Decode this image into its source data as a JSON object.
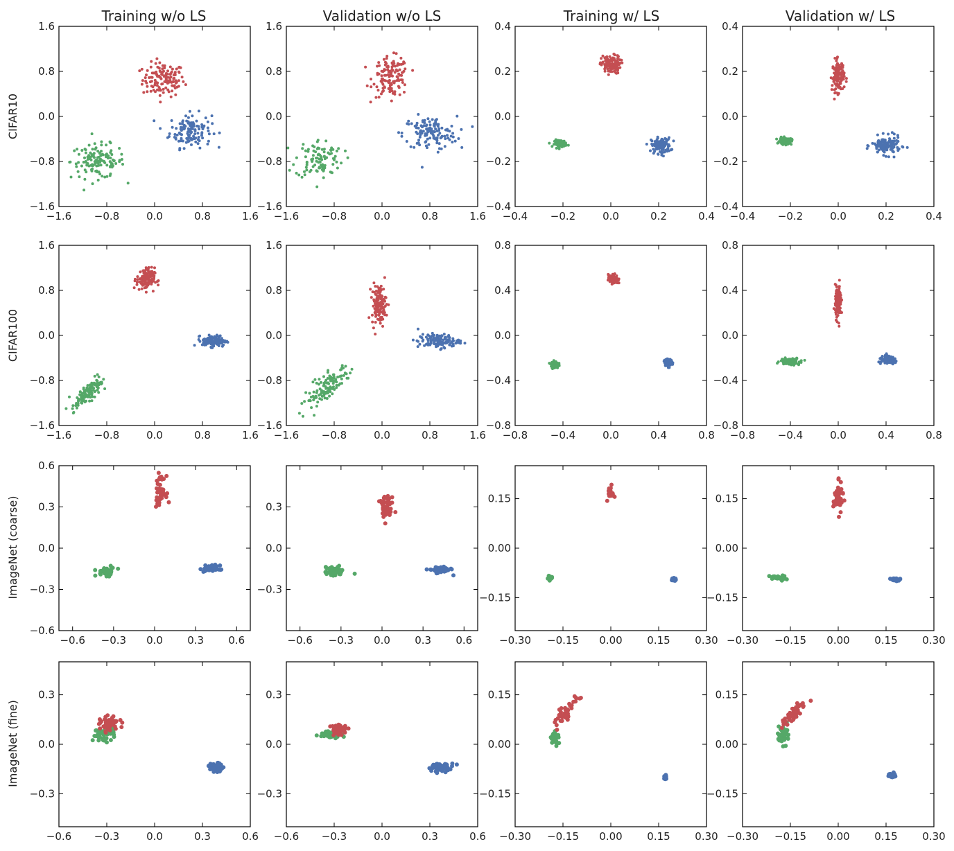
{
  "figure": {
    "column_titles": [
      "Training w/o LS",
      "Validation w/o LS",
      "Training w/ LS",
      "Validation w/ LS"
    ],
    "row_labels": [
      "CIFAR10",
      "CIFAR100",
      "ImageNet (coarse)",
      "ImageNet (fine)"
    ],
    "colors": {
      "red": "#c44e52",
      "blue": "#4c72b0",
      "green": "#55a868"
    }
  },
  "chart_data": [
    {
      "type": "scatter",
      "row": 0,
      "col": 0,
      "xlim": [
        -1.6,
        1.6
      ],
      "ylim": [
        -1.6,
        1.6
      ],
      "xticks": [
        "-1.6",
        "-0.8",
        "0.0",
        "0.8",
        "1.6"
      ],
      "yticks": [
        "-1.6",
        "-0.8",
        "0.0",
        "0.8",
        "1.6"
      ],
      "series": [
        {
          "color": "red",
          "center": [
            0.15,
            0.65
          ],
          "spread": [
            0.35,
            0.3
          ],
          "n": 130
        },
        {
          "color": "blue",
          "center": [
            0.6,
            -0.25
          ],
          "spread": [
            0.35,
            0.3
          ],
          "n": 130
        },
        {
          "color": "green",
          "center": [
            -0.95,
            -0.8
          ],
          "spread": [
            0.45,
            0.3
          ],
          "n": 130
        }
      ]
    },
    {
      "type": "scatter",
      "row": 0,
      "col": 1,
      "xlim": [
        -1.6,
        1.6
      ],
      "ylim": [
        -1.6,
        1.6
      ],
      "xticks": [
        "-1.6",
        "-0.8",
        "0.0",
        "0.8",
        "1.6"
      ],
      "yticks": [
        "-1.6",
        "-0.8",
        "0.0",
        "0.8",
        "1.6"
      ],
      "series": [
        {
          "color": "red",
          "center": [
            0.15,
            0.7
          ],
          "spread": [
            0.3,
            0.35
          ],
          "n": 130
        },
        {
          "color": "blue",
          "center": [
            0.8,
            -0.3
          ],
          "spread": [
            0.45,
            0.3
          ],
          "n": 130
        },
        {
          "color": "green",
          "center": [
            -1.05,
            -0.75
          ],
          "spread": [
            0.4,
            0.35
          ],
          "n": 100
        }
      ]
    },
    {
      "type": "scatter",
      "row": 0,
      "col": 2,
      "xlim": [
        -0.4,
        0.4
      ],
      "ylim": [
        -0.4,
        0.4
      ],
      "xticks": [
        "-0.4",
        "-0.2",
        "0.0",
        "0.2",
        "0.4"
      ],
      "yticks": [
        "-0.4",
        "-0.2",
        "0.0",
        "0.2",
        "0.4"
      ],
      "series": [
        {
          "color": "red",
          "center": [
            0.0,
            0.23
          ],
          "spread": [
            0.04,
            0.04
          ],
          "n": 120
        },
        {
          "color": "blue",
          "center": [
            0.21,
            -0.13
          ],
          "spread": [
            0.04,
            0.035
          ],
          "n": 120
        },
        {
          "color": "green",
          "center": [
            -0.21,
            -0.12
          ],
          "spread": [
            0.025,
            0.015
          ],
          "n": 100
        }
      ]
    },
    {
      "type": "scatter",
      "row": 0,
      "col": 3,
      "xlim": [
        -0.4,
        0.4
      ],
      "ylim": [
        -0.4,
        0.4
      ],
      "xticks": [
        "-0.4",
        "-0.2",
        "0.0",
        "0.2",
        "0.4"
      ],
      "yticks": [
        "-0.4",
        "-0.2",
        "0.0",
        "0.2",
        "0.4"
      ],
      "series": [
        {
          "color": "red",
          "center": [
            0.0,
            0.18
          ],
          "spread": [
            0.025,
            0.07
          ],
          "n": 130
        },
        {
          "color": "blue",
          "center": [
            0.2,
            -0.13
          ],
          "spread": [
            0.06,
            0.04
          ],
          "n": 130
        },
        {
          "color": "green",
          "center": [
            -0.22,
            -0.11
          ],
          "spread": [
            0.025,
            0.015
          ],
          "n": 100
        }
      ]
    },
    {
      "type": "scatter",
      "row": 1,
      "col": 0,
      "xlim": [
        -1.6,
        1.6
      ],
      "ylim": [
        -1.6,
        1.6
      ],
      "xticks": [
        "-1.6",
        "-0.8",
        "0.0",
        "0.8",
        "1.6"
      ],
      "yticks": [
        "-1.6",
        "-0.8",
        "0.0",
        "0.8",
        "1.6"
      ],
      "series": [
        {
          "color": "red",
          "center": [
            -0.15,
            1.0
          ],
          "spread": [
            0.15,
            0.2
          ],
          "n": 120
        },
        {
          "color": "blue",
          "center": [
            1.0,
            -0.1
          ],
          "spread": [
            0.2,
            0.1
          ],
          "n": 130
        },
        {
          "color": "green",
          "center": [
            -1.1,
            -1.0
          ],
          "spread": [
            0.2,
            0.25
          ],
          "diag": true,
          "n": 130
        }
      ]
    },
    {
      "type": "scatter",
      "row": 1,
      "col": 1,
      "xlim": [
        -1.6,
        1.6
      ],
      "ylim": [
        -1.6,
        1.6
      ],
      "xticks": [
        "-1.6",
        "-0.8",
        "0.0",
        "0.8",
        "1.6"
      ],
      "yticks": [
        "-1.6",
        "-0.8",
        "0.0",
        "0.8",
        "1.6"
      ],
      "series": [
        {
          "color": "red",
          "center": [
            -0.05,
            0.55
          ],
          "spread": [
            0.12,
            0.35
          ],
          "n": 130
        },
        {
          "color": "blue",
          "center": [
            0.95,
            -0.1
          ],
          "spread": [
            0.35,
            0.12
          ],
          "n": 120
        },
        {
          "color": "green",
          "center": [
            -0.95,
            -0.95
          ],
          "spread": [
            0.35,
            0.35
          ],
          "diag": true,
          "n": 120
        }
      ]
    },
    {
      "type": "scatter",
      "row": 1,
      "col": 2,
      "xlim": [
        -0.8,
        0.8
      ],
      "ylim": [
        -0.8,
        0.8
      ],
      "xticks": [
        "-0.8",
        "-0.4",
        "0.0",
        "0.4",
        "0.8"
      ],
      "yticks": [
        "-0.8",
        "-0.4",
        "0.0",
        "0.4",
        "0.8"
      ],
      "series": [
        {
          "color": "red",
          "center": [
            0.02,
            0.5
          ],
          "spread": [
            0.04,
            0.04
          ],
          "n": 110
        },
        {
          "color": "blue",
          "center": [
            0.48,
            -0.24
          ],
          "spread": [
            0.03,
            0.03
          ],
          "n": 120
        },
        {
          "color": "green",
          "center": [
            -0.47,
            -0.26
          ],
          "spread": [
            0.03,
            0.03
          ],
          "n": 120
        }
      ]
    },
    {
      "type": "scatter",
      "row": 1,
      "col": 3,
      "xlim": [
        -0.8,
        0.8
      ],
      "ylim": [
        -0.8,
        0.8
      ],
      "xticks": [
        "-0.8",
        "-0.4",
        "0.0",
        "0.4",
        "0.8"
      ],
      "yticks": [
        "-0.8",
        "-0.4",
        "0.0",
        "0.4",
        "0.8"
      ],
      "series": [
        {
          "color": "red",
          "center": [
            0.0,
            0.3
          ],
          "spread": [
            0.025,
            0.14
          ],
          "n": 130
        },
        {
          "color": "blue",
          "center": [
            0.42,
            -0.22
          ],
          "spread": [
            0.08,
            0.035
          ],
          "n": 110
        },
        {
          "color": "green",
          "center": [
            -0.4,
            -0.23
          ],
          "spread": [
            0.08,
            0.03
          ],
          "n": 110
        }
      ]
    },
    {
      "type": "scatter",
      "row": 2,
      "col": 0,
      "xlim": [
        -0.7,
        0.7
      ],
      "ylim": [
        -0.6,
        0.6
      ],
      "xticks": [
        "-0.6",
        "-0.3",
        "0.0",
        "0.3",
        "0.6"
      ],
      "yticks": [
        "-0.6",
        "-0.3",
        "0.0",
        "0.3",
        "0.6"
      ],
      "series": [
        {
          "color": "red",
          "center": [
            0.04,
            0.42
          ],
          "spread": [
            0.04,
            0.1
          ],
          "n": 45
        },
        {
          "color": "blue",
          "center": [
            0.42,
            -0.15
          ],
          "spread": [
            0.06,
            0.025
          ],
          "n": 45
        },
        {
          "color": "green",
          "center": [
            -0.35,
            -0.17
          ],
          "spread": [
            0.07,
            0.03
          ],
          "n": 45
        }
      ]
    },
    {
      "type": "scatter",
      "row": 2,
      "col": 1,
      "xlim": [
        -0.7,
        0.7
      ],
      "ylim": [
        -0.6,
        0.6
      ],
      "xticks": [
        "-0.6",
        "-0.3",
        "0.0",
        "0.3",
        "0.6"
      ],
      "yticks": [
        "-0.3",
        "0.0",
        "0.3"
      ],
      "series": [
        {
          "color": "red",
          "center": [
            0.03,
            0.3
          ],
          "spread": [
            0.05,
            0.1
          ],
          "n": 45
        },
        {
          "color": "blue",
          "center": [
            0.42,
            -0.16
          ],
          "spread": [
            0.08,
            0.025
          ],
          "n": 45
        },
        {
          "color": "green",
          "center": [
            -0.35,
            -0.17
          ],
          "spread": [
            0.07,
            0.035
          ],
          "n": 45
        }
      ]
    },
    {
      "type": "scatter",
      "row": 2,
      "col": 2,
      "xlim": [
        -0.3,
        0.3
      ],
      "ylim": [
        -0.25,
        0.25
      ],
      "xticks": [
        "-0.30",
        "-0.15",
        "0.00",
        "0.15",
        "0.30"
      ],
      "yticks": [
        "-0.15",
        "0.00",
        "0.15"
      ],
      "series": [
        {
          "color": "red",
          "center": [
            0.0,
            0.17
          ],
          "spread": [
            0.01,
            0.02
          ],
          "n": 25
        },
        {
          "color": "blue",
          "center": [
            0.2,
            -0.095
          ],
          "spread": [
            0.006,
            0.004
          ],
          "n": 30
        },
        {
          "color": "green",
          "center": [
            -0.19,
            -0.09
          ],
          "spread": [
            0.008,
            0.006
          ],
          "n": 30
        }
      ]
    },
    {
      "type": "scatter",
      "row": 2,
      "col": 3,
      "xlim": [
        -0.3,
        0.3
      ],
      "ylim": [
        -0.25,
        0.25
      ],
      "xticks": [
        "-0.30",
        "-0.15",
        "0.00",
        "0.15",
        "0.30"
      ],
      "yticks": [
        "-0.15",
        "0.00",
        "0.15"
      ],
      "series": [
        {
          "color": "red",
          "center": [
            0.0,
            0.15
          ],
          "spread": [
            0.015,
            0.045
          ],
          "n": 45
        },
        {
          "color": "blue",
          "center": [
            0.18,
            -0.095
          ],
          "spread": [
            0.015,
            0.004
          ],
          "n": 30
        },
        {
          "color": "green",
          "center": [
            -0.19,
            -0.09
          ],
          "spread": [
            0.025,
            0.008
          ],
          "n": 35
        }
      ]
    },
    {
      "type": "scatter",
      "row": 3,
      "col": 0,
      "xlim": [
        -0.6,
        0.6
      ],
      "ylim": [
        -0.5,
        0.5
      ],
      "xticks": [
        "-0.6",
        "-0.3",
        "0.0",
        "0.3",
        "0.6"
      ],
      "yticks": [
        "-0.3",
        "0.0",
        "0.3"
      ],
      "series": [
        {
          "color": "green",
          "center": [
            -0.32,
            0.06
          ],
          "spread": [
            0.07,
            0.04
          ],
          "n": 50
        },
        {
          "color": "red",
          "center": [
            -0.28,
            0.12
          ],
          "spread": [
            0.06,
            0.045
          ],
          "n": 50
        },
        {
          "color": "blue",
          "center": [
            0.38,
            -0.14
          ],
          "spread": [
            0.05,
            0.025
          ],
          "n": 45
        }
      ]
    },
    {
      "type": "scatter",
      "row": 3,
      "col": 1,
      "xlim": [
        -0.6,
        0.6
      ],
      "ylim": [
        -0.5,
        0.5
      ],
      "xticks": [
        "-0.6",
        "-0.3",
        "0.0",
        "0.3",
        "0.6"
      ],
      "yticks": [
        "-0.3",
        "0.0",
        "0.3"
      ],
      "series": [
        {
          "color": "green",
          "center": [
            -0.32,
            0.06
          ],
          "spread": [
            0.07,
            0.02
          ],
          "n": 50
        },
        {
          "color": "red",
          "center": [
            -0.27,
            0.09
          ],
          "spread": [
            0.05,
            0.03
          ],
          "n": 60
        },
        {
          "color": "blue",
          "center": [
            0.37,
            -0.14
          ],
          "spread": [
            0.08,
            0.025
          ],
          "n": 45
        }
      ]
    },
    {
      "type": "scatter",
      "row": 3,
      "col": 2,
      "xlim": [
        -0.3,
        0.3
      ],
      "ylim": [
        -0.25,
        0.25
      ],
      "xticks": [
        "-0.30",
        "-0.15",
        "0.00",
        "0.15",
        "0.30"
      ],
      "yticks": [
        "-0.15",
        "0.00",
        "0.15"
      ],
      "series": [
        {
          "color": "green",
          "center": [
            -0.175,
            0.02
          ],
          "spread": [
            0.012,
            0.02
          ],
          "n": 40
        },
        {
          "color": "red",
          "center": [
            -0.14,
            0.1
          ],
          "spread": [
            0.02,
            0.04
          ],
          "diag": true,
          "n": 45
        },
        {
          "color": "blue",
          "center": [
            0.17,
            -0.1
          ],
          "spread": [
            0.004,
            0.007
          ],
          "n": 30
        }
      ]
    },
    {
      "type": "scatter",
      "row": 3,
      "col": 3,
      "xlim": [
        -0.3,
        0.3
      ],
      "ylim": [
        -0.25,
        0.25
      ],
      "xticks": [
        "-0.30",
        "-0.15",
        "0.00",
        "0.15",
        "0.30"
      ],
      "yticks": [
        "-0.15",
        "0.00",
        "0.15"
      ],
      "series": [
        {
          "color": "green",
          "center": [
            -0.17,
            0.03
          ],
          "spread": [
            0.02,
            0.03
          ],
          "n": 45
        },
        {
          "color": "red",
          "center": [
            -0.14,
            0.09
          ],
          "spread": [
            0.02,
            0.035
          ],
          "diag": true,
          "n": 50
        },
        {
          "color": "blue",
          "center": [
            0.17,
            -0.095
          ],
          "spread": [
            0.012,
            0.008
          ],
          "n": 30
        }
      ]
    }
  ]
}
